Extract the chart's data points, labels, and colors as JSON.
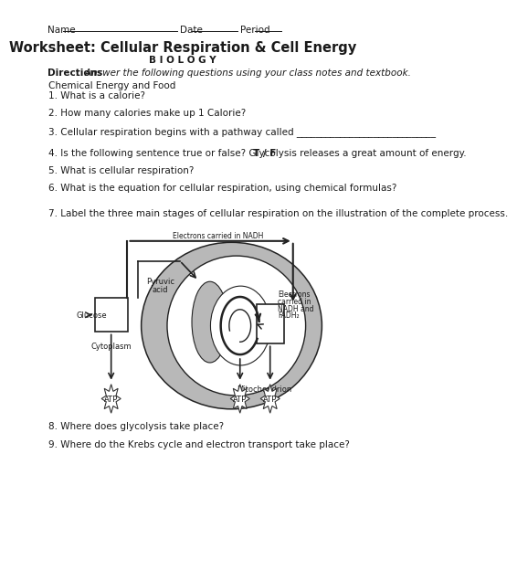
{
  "title": "Worksheet: Cellular Respiration & Cell Energy",
  "subtitle": "B I O L O G Y",
  "directions_bold": "Directions",
  "directions_italic": ":  Answer the following questions using your class notes and textbook.",
  "section_header": "Chemical Energy and Food",
  "q1": "1. What is a calorie?",
  "q2": "2. How many calories make up 1 Calorie?",
  "q3": "3. Cellular respiration begins with a pathway called _____________________________",
  "q4a": "4. Is the following sentence true or false? Glycolysis releases a great amount of energy.   ",
  "q4b": "T / F",
  "q5": "5. What is cellular respiration?",
  "q6": "6. What is the equation for cellular respiration, using chemical formulas?",
  "q7": "7. Label the three main stages of cellular respiration on the illustration of the complete process.",
  "q8": "8. Where does glycolysis take place?",
  "q9": "9. Where do the Krebs cycle and electron transport take place?",
  "bg_color": "#ffffff",
  "text_color": "#1a1a1a",
  "gray_color": "#b0b0b0",
  "dark_color": "#222222",
  "fs": 7.5,
  "fs_small": 6.0,
  "fs_tiny": 5.5,
  "fs_title": 10.5
}
